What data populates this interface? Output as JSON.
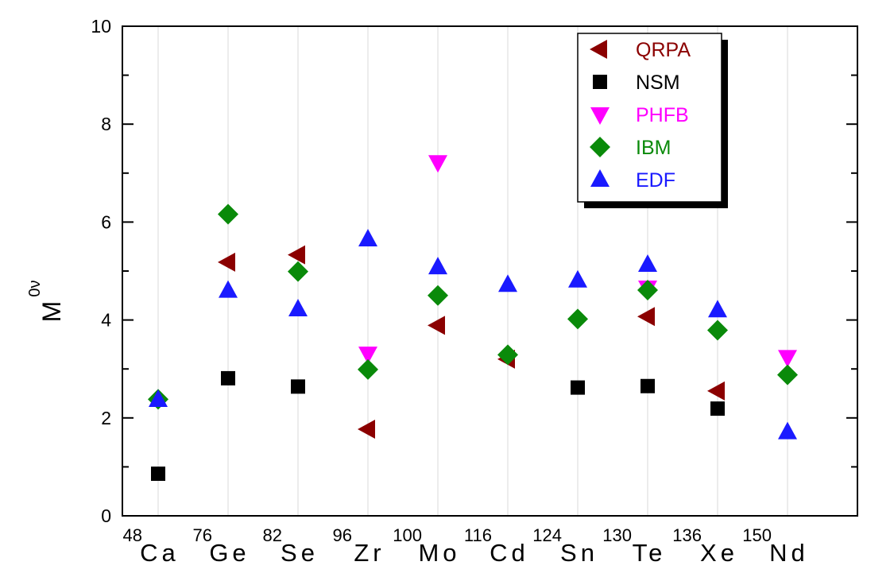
{
  "chart_data": {
    "type": "scatter",
    "title": "",
    "xlabel": "",
    "ylabel": "M",
    "ylabel_superscript": "0ν",
    "ylim": [
      0,
      10
    ],
    "yticks": [
      "0",
      "2",
      "4",
      "6",
      "8",
      "10"
    ],
    "grid": "vertical lines at each isotope",
    "legend_position": "top-right",
    "categories": [
      {
        "mass": "48",
        "symbol": "Ca"
      },
      {
        "mass": "76",
        "symbol": "Ge"
      },
      {
        "mass": "82",
        "symbol": "Se"
      },
      {
        "mass": "96",
        "symbol": "Zr"
      },
      {
        "mass": "100",
        "symbol": "Mo"
      },
      {
        "mass": "116",
        "symbol": "Cd"
      },
      {
        "mass": "124",
        "symbol": "Sn"
      },
      {
        "mass": "130",
        "symbol": "Te"
      },
      {
        "mass": "136",
        "symbol": "Xe"
      },
      {
        "mass": "150",
        "symbol": "Nd"
      }
    ],
    "series": [
      {
        "name": "QRPA",
        "marker": "triangle-left",
        "color": "#8b0000",
        "values": [
          null,
          5.18,
          5.33,
          1.77,
          3.89,
          3.2,
          null,
          4.07,
          2.55,
          null
        ]
      },
      {
        "name": "NSM",
        "marker": "square",
        "color": "#000000",
        "values": [
          0.86,
          2.81,
          2.64,
          null,
          null,
          null,
          2.62,
          2.65,
          2.19,
          null
        ]
      },
      {
        "name": "PHFB",
        "marker": "triangle-down",
        "color": "#ff00ff",
        "values": [
          null,
          null,
          null,
          3.31,
          7.22,
          null,
          null,
          4.66,
          null,
          3.24
        ]
      },
      {
        "name": "IBM",
        "marker": "diamond",
        "color": "#0a8a0a",
        "values": [
          2.38,
          6.16,
          4.99,
          2.99,
          4.5,
          3.29,
          4.02,
          4.61,
          3.79,
          2.88
        ]
      },
      {
        "name": "EDF",
        "marker": "triangle-up",
        "color": "#1a1aff",
        "values": [
          2.37,
          4.6,
          4.22,
          5.65,
          5.08,
          4.72,
          4.81,
          5.13,
          4.2,
          1.71
        ]
      }
    ]
  }
}
